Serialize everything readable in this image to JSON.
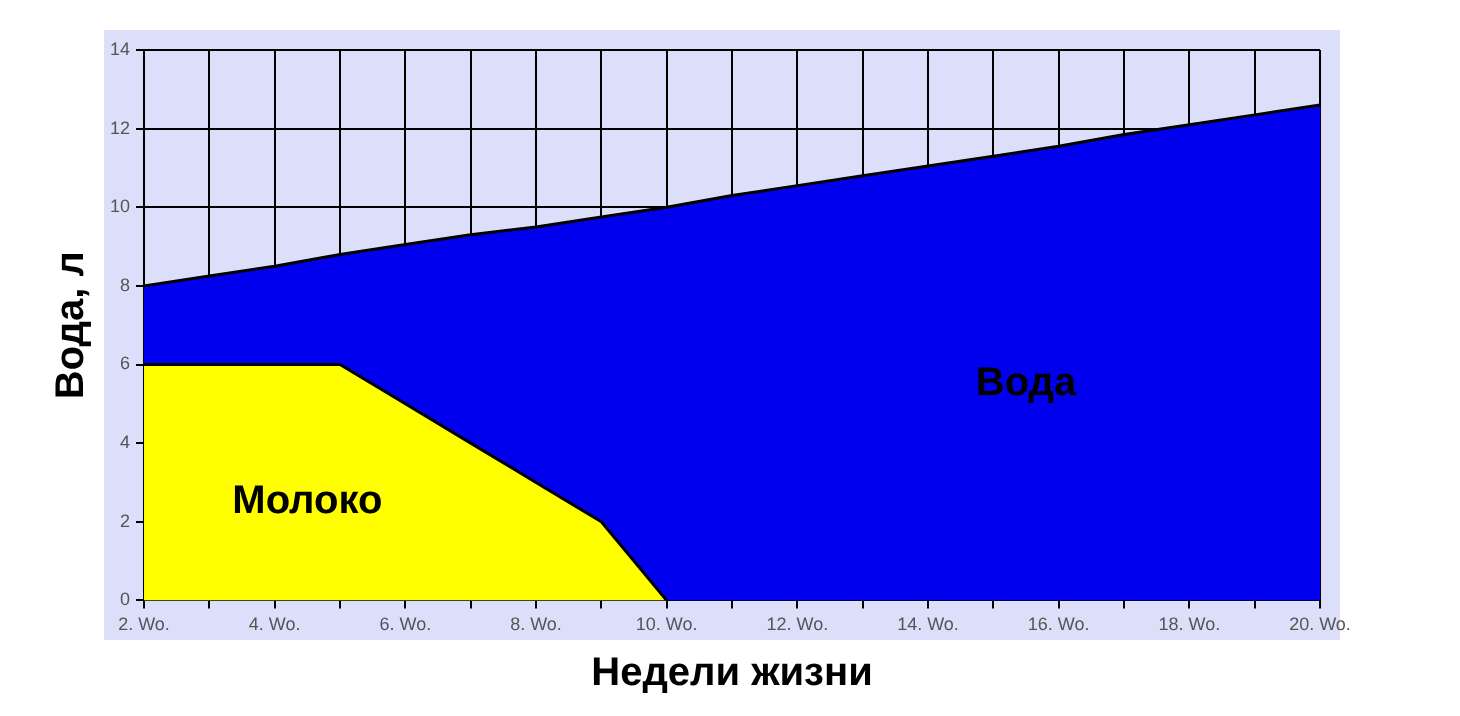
{
  "chart_data": {
    "type": "area",
    "xlabel": "Недели жизни",
    "ylabel": "Вода, л",
    "categories": [
      "2. Wo.",
      null,
      "4. Wo.",
      null,
      "6. Wo.",
      null,
      "8. Wo.",
      null,
      "10. Wo.",
      null,
      "12. Wo.",
      null,
      "14. Wo.",
      null,
      "16. Wo.",
      null,
      "18. Wo.",
      null,
      "20. Wo."
    ],
    "series": [
      {
        "name": "Вода",
        "color": "#0000ee",
        "values": [
          8,
          8.25,
          8.5,
          8.8,
          9.05,
          9.3,
          9.5,
          9.75,
          10,
          10.3,
          10.55,
          10.8,
          11.05,
          11.3,
          11.55,
          11.85,
          12.1,
          12.35,
          12.6
        ]
      },
      {
        "name": "Молоко",
        "color": "#ffff00",
        "values": [
          6,
          6,
          6,
          6,
          5,
          4,
          3,
          2,
          0,
          null,
          null,
          null,
          null,
          null,
          null,
          null,
          null,
          null,
          null
        ]
      }
    ],
    "ylim": [
      0,
      14
    ],
    "yticks": [
      0,
      2,
      4,
      6,
      8,
      10,
      12,
      14
    ],
    "grid": true,
    "legend": false,
    "marker": "none",
    "line_style": "solid"
  }
}
